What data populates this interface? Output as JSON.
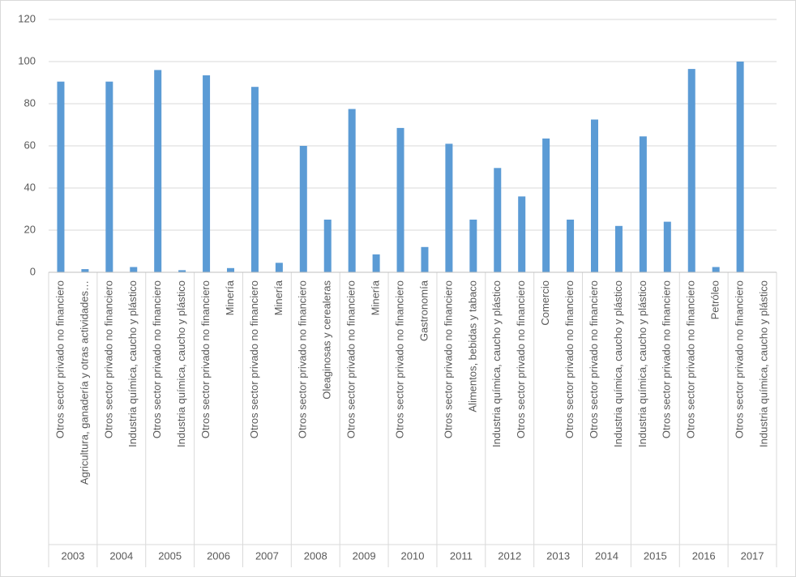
{
  "chart_data": {
    "type": "bar",
    "categories": [
      "Otros sector privado no financiero",
      "Agricultura, ganadería y otras actividades…",
      "Otros sector privado no financiero",
      "Industria química, caucho y plástico",
      "Otros sector privado no financiero",
      "Industria química, caucho y plástico",
      "Otros sector privado no financiero",
      "Minería",
      "Otros sector privado no financiero",
      "Minería",
      "Otros sector privado no financiero",
      "Oleaginosas y cerealeras",
      "Otros sector privado no financiero",
      "Minería",
      "Otros sector privado no financiero",
      "Gastronomía",
      "Otros sector privado no financiero",
      "Alimentos, bebidas y tabaco",
      "Industria química, caucho y plástico",
      "Otros sector privado no financiero",
      "Comercio",
      "Otros sector privado no financiero",
      "Otros sector privado no financiero",
      "Industria química, caucho y plástico",
      "Industria química, caucho y plástico",
      "Otros sector privado no financiero",
      "Otros sector privado no financiero",
      "Petróleo",
      "Otros sector privado no financiero",
      "Industria química, caucho y plástico"
    ],
    "group_labels": [
      "2003",
      "2004",
      "2005",
      "2006",
      "2007",
      "2008",
      "2009",
      "2010",
      "2011",
      "2012",
      "2013",
      "2014",
      "2015",
      "2016",
      "2017"
    ],
    "values": [
      90.5,
      1.5,
      90.5,
      2.5,
      96,
      1,
      93.5,
      2,
      88,
      4.5,
      60,
      25,
      77.5,
      8.5,
      68.5,
      12,
      61,
      25,
      49.5,
      36,
      63.5,
      25,
      72.5,
      22,
      64.5,
      24,
      96.5,
      2.5,
      100,
      0
    ],
    "color": "#5b9bd5",
    "ylim": [
      0,
      120
    ],
    "yticks": [
      0,
      20,
      40,
      60,
      80,
      100,
      120
    ],
    "grid": true
  }
}
